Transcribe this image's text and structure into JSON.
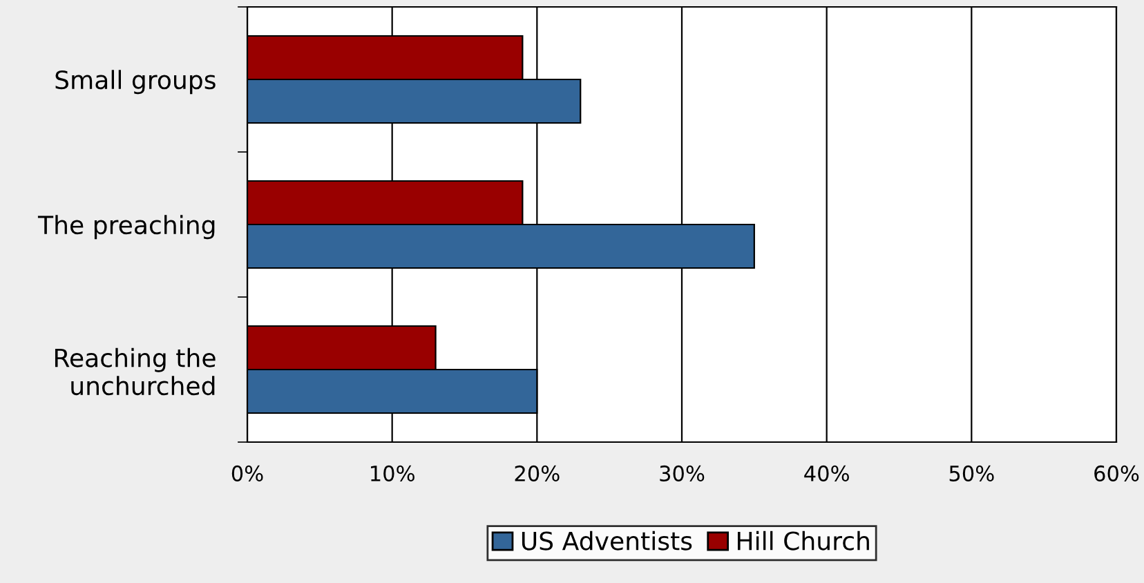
{
  "chart_data": {
    "type": "bar",
    "orientation": "horizontal",
    "categories": [
      "Small groups",
      "The preaching",
      "Reaching the\nunchurched"
    ],
    "series": [
      {
        "name": "US Adventists",
        "color": "#336699",
        "values": [
          23,
          35,
          20
        ]
      },
      {
        "name": "Hill Church",
        "color": "#990000",
        "values": [
          19,
          19,
          13
        ]
      }
    ],
    "xlim": [
      0,
      60
    ],
    "xticks": [
      {
        "value": 0,
        "label": "0%"
      },
      {
        "value": 10,
        "label": "10%"
      },
      {
        "value": 20,
        "label": "20%"
      },
      {
        "value": 30,
        "label": "30%"
      },
      {
        "value": 40,
        "label": "40%"
      },
      {
        "value": 50,
        "label": "50%"
      },
      {
        "value": 60,
        "label": "60%"
      }
    ],
    "grid": "x",
    "legend": "bottom"
  }
}
